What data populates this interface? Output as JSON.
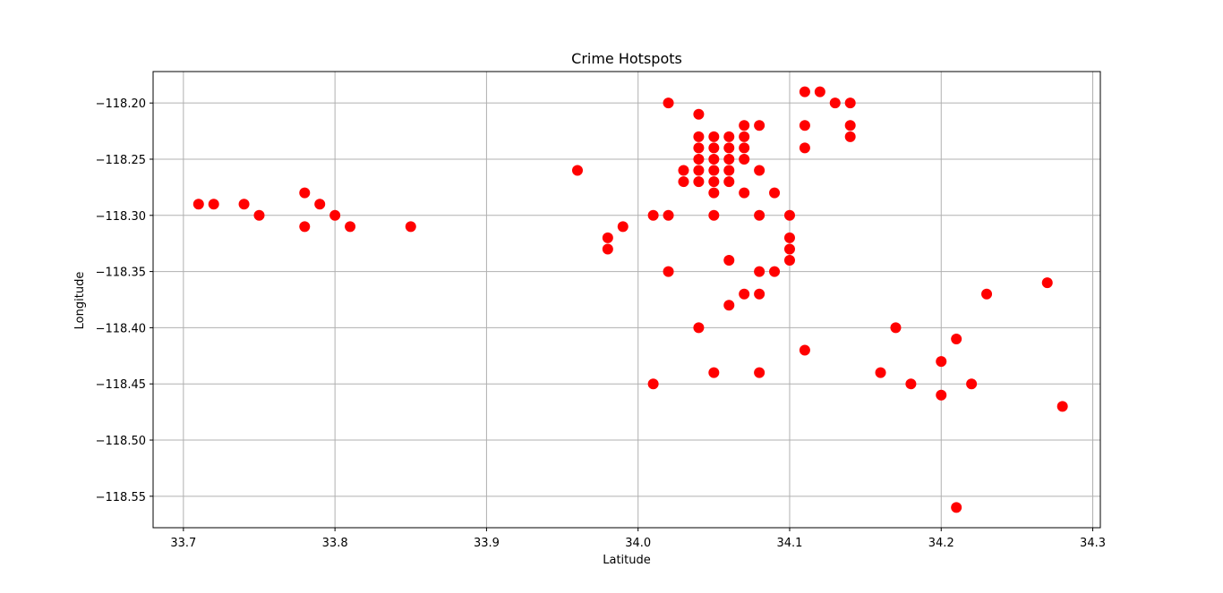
{
  "chart_data": {
    "type": "scatter",
    "title": "Crime Hotspots",
    "xlabel": "Latitude",
    "ylabel": "Longitude",
    "xlim": [
      33.68,
      34.305
    ],
    "ylim": [
      -118.578,
      -118.172
    ],
    "xticks": [
      33.7,
      33.8,
      33.9,
      34.0,
      34.1,
      34.2,
      34.3
    ],
    "xtick_labels": [
      "33.7",
      "33.8",
      "33.9",
      "34.0",
      "34.1",
      "34.2",
      "34.3"
    ],
    "yticks": [
      -118.2,
      -118.25,
      -118.3,
      -118.35,
      -118.4,
      -118.45,
      -118.5,
      -118.55
    ],
    "ytick_labels": [
      "−118.20",
      "−118.25",
      "−118.30",
      "−118.35",
      "−118.40",
      "−118.45",
      "−118.50",
      "−118.55"
    ],
    "grid": true,
    "marker_color": "#ff0000",
    "points": [
      {
        "x": 33.71,
        "y": -118.29
      },
      {
        "x": 33.72,
        "y": -118.29
      },
      {
        "x": 33.74,
        "y": -118.29
      },
      {
        "x": 33.75,
        "y": -118.3
      },
      {
        "x": 33.78,
        "y": -118.28
      },
      {
        "x": 33.78,
        "y": -118.31
      },
      {
        "x": 33.79,
        "y": -118.29
      },
      {
        "x": 33.8,
        "y": -118.3
      },
      {
        "x": 33.81,
        "y": -118.31
      },
      {
        "x": 33.85,
        "y": -118.31
      },
      {
        "x": 33.96,
        "y": -118.26
      },
      {
        "x": 33.98,
        "y": -118.32
      },
      {
        "x": 33.98,
        "y": -118.33
      },
      {
        "x": 33.99,
        "y": -118.31
      },
      {
        "x": 34.01,
        "y": -118.3
      },
      {
        "x": 34.01,
        "y": -118.45
      },
      {
        "x": 34.02,
        "y": -118.2
      },
      {
        "x": 34.02,
        "y": -118.3
      },
      {
        "x": 34.02,
        "y": -118.35
      },
      {
        "x": 34.03,
        "y": -118.26
      },
      {
        "x": 34.03,
        "y": -118.27
      },
      {
        "x": 34.04,
        "y": -118.21
      },
      {
        "x": 34.04,
        "y": -118.23
      },
      {
        "x": 34.04,
        "y": -118.24
      },
      {
        "x": 34.04,
        "y": -118.25
      },
      {
        "x": 34.04,
        "y": -118.26
      },
      {
        "x": 34.04,
        "y": -118.27
      },
      {
        "x": 34.04,
        "y": -118.4
      },
      {
        "x": 34.05,
        "y": -118.23
      },
      {
        "x": 34.05,
        "y": -118.24
      },
      {
        "x": 34.05,
        "y": -118.25
      },
      {
        "x": 34.05,
        "y": -118.26
      },
      {
        "x": 34.05,
        "y": -118.27
      },
      {
        "x": 34.05,
        "y": -118.28
      },
      {
        "x": 34.05,
        "y": -118.3
      },
      {
        "x": 34.05,
        "y": -118.44
      },
      {
        "x": 34.06,
        "y": -118.23
      },
      {
        "x": 34.06,
        "y": -118.24
      },
      {
        "x": 34.06,
        "y": -118.25
      },
      {
        "x": 34.06,
        "y": -118.26
      },
      {
        "x": 34.06,
        "y": -118.27
      },
      {
        "x": 34.06,
        "y": -118.34
      },
      {
        "x": 34.06,
        "y": -118.38
      },
      {
        "x": 34.07,
        "y": -118.22
      },
      {
        "x": 34.07,
        "y": -118.23
      },
      {
        "x": 34.07,
        "y": -118.24
      },
      {
        "x": 34.07,
        "y": -118.25
      },
      {
        "x": 34.07,
        "y": -118.28
      },
      {
        "x": 34.07,
        "y": -118.37
      },
      {
        "x": 34.08,
        "y": -118.22
      },
      {
        "x": 34.08,
        "y": -118.26
      },
      {
        "x": 34.08,
        "y": -118.3
      },
      {
        "x": 34.08,
        "y": -118.35
      },
      {
        "x": 34.08,
        "y": -118.37
      },
      {
        "x": 34.08,
        "y": -118.44
      },
      {
        "x": 34.09,
        "y": -118.28
      },
      {
        "x": 34.09,
        "y": -118.35
      },
      {
        "x": 34.1,
        "y": -118.3
      },
      {
        "x": 34.1,
        "y": -118.32
      },
      {
        "x": 34.1,
        "y": -118.33
      },
      {
        "x": 34.1,
        "y": -118.34
      },
      {
        "x": 34.11,
        "y": -118.19
      },
      {
        "x": 34.11,
        "y": -118.22
      },
      {
        "x": 34.11,
        "y": -118.24
      },
      {
        "x": 34.11,
        "y": -118.42
      },
      {
        "x": 34.12,
        "y": -118.19
      },
      {
        "x": 34.13,
        "y": -118.2
      },
      {
        "x": 34.14,
        "y": -118.2
      },
      {
        "x": 34.14,
        "y": -118.22
      },
      {
        "x": 34.14,
        "y": -118.23
      },
      {
        "x": 34.16,
        "y": -118.44
      },
      {
        "x": 34.17,
        "y": -118.4
      },
      {
        "x": 34.18,
        "y": -118.45
      },
      {
        "x": 34.2,
        "y": -118.43
      },
      {
        "x": 34.2,
        "y": -118.46
      },
      {
        "x": 34.21,
        "y": -118.41
      },
      {
        "x": 34.21,
        "y": -118.56
      },
      {
        "x": 34.22,
        "y": -118.45
      },
      {
        "x": 34.23,
        "y": -118.37
      },
      {
        "x": 34.27,
        "y": -118.36
      },
      {
        "x": 34.28,
        "y": -118.47
      }
    ]
  }
}
